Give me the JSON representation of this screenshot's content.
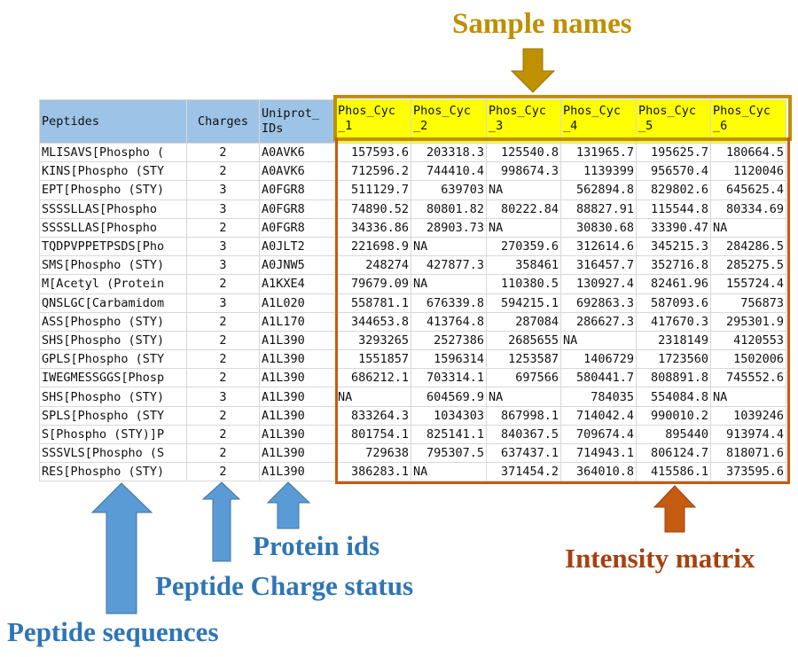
{
  "annotations": {
    "sample_names": "Sample names",
    "intensity_matrix": "Intensity matrix",
    "protein_ids": "Protein ids",
    "charge_status": "Peptide Charge status",
    "peptide_sequences": "Peptide sequences"
  },
  "colors": {
    "sample_label": "#bf8f00",
    "intensity_label": "#a5410e",
    "blue_label": "#2e75b6",
    "blue_arrow": "#5b9bd5",
    "gold_arrow": "#bf9000",
    "orange_arrow": "#c55a11",
    "header_fill": "#9dc3e6",
    "sample_fill": "#ffff00"
  },
  "table": {
    "headers": [
      "Peptides",
      "Charges",
      "Uniprot_ IDs",
      "Phos_Cyc _1",
      "Phos_Cyc _2",
      "Phos_Cyc _3",
      "Phos_Cyc _4",
      "Phos_Cyc _5",
      "Phos_Cyc _6"
    ],
    "rows": [
      [
        "MLISAVS[Phospho (",
        "2",
        "A0AVK6",
        "157593.6",
        "203318.3",
        "125540.8",
        "131965.7",
        "195625.7",
        "180664.5"
      ],
      [
        "KINS[Phospho (STY",
        "2",
        "A0AVK6",
        "712596.2",
        "744410.4",
        "998674.3",
        "1139399",
        "956570.4",
        "1120046"
      ],
      [
        "EPT[Phospho (STY)",
        "3",
        "A0FGR8",
        "511129.7",
        "639703",
        "NA",
        "562894.8",
        "829802.6",
        "645625.4"
      ],
      [
        "SSSSLLAS[Phospho",
        "3",
        "A0FGR8",
        "74890.52",
        "80801.82",
        "80222.84",
        "88827.91",
        "115544.8",
        "80334.69"
      ],
      [
        "SSSSLLAS[Phospho",
        "2",
        "A0FGR8",
        "34336.86",
        "28903.73",
        "NA",
        "30830.68",
        "33390.47",
        "NA"
      ],
      [
        "TQDPVPPETPSDS[Pho",
        "3",
        "A0JLT2",
        "221698.9",
        "NA",
        "270359.6",
        "312614.6",
        "345215.3",
        "284286.5"
      ],
      [
        "SMS[Phospho (STY)",
        "3",
        "A0JNW5",
        "248274",
        "427877.3",
        "358461",
        "316457.7",
        "352716.8",
        "285275.5"
      ],
      [
        "M[Acetyl (Protein",
        "2",
        "A1KXE4",
        "79679.09",
        "NA",
        "110380.5",
        "130927.4",
        "82461.96",
        "155724.4"
      ],
      [
        "QNSLGC[Carbamidom",
        "3",
        "A1L020",
        "558781.1",
        "676339.8",
        "594215.1",
        "692863.3",
        "587093.6",
        "756873"
      ],
      [
        "ASS[Phospho (STY)",
        "2",
        "A1L170",
        "344653.8",
        "413764.8",
        "287084",
        "286627.3",
        "417670.3",
        "295301.9"
      ],
      [
        "SHS[Phospho (STY)",
        "2",
        "A1L390",
        "3293265",
        "2527386",
        "2685655",
        "NA",
        "2318149",
        "4120553"
      ],
      [
        "GPLS[Phospho (STY",
        "2",
        "A1L390",
        "1551857",
        "1596314",
        "1253587",
        "1406729",
        "1723560",
        "1502006"
      ],
      [
        "IWEGMESSGGS[Phosp",
        "2",
        "A1L390",
        "686212.1",
        "703314.1",
        "697566",
        "580441.7",
        "808891.8",
        "745552.6"
      ],
      [
        "SHS[Phospho (STY)",
        "3",
        "A1L390",
        "NA",
        "604569.9",
        "NA",
        "784035",
        "554084.8",
        "NA"
      ],
      [
        "SPLS[Phospho (STY",
        "2",
        "A1L390",
        "833264.3",
        "1034303",
        "867998.1",
        "714042.4",
        "990010.2",
        "1039246"
      ],
      [
        "S[Phospho (STY)]P",
        "2",
        "A1L390",
        "801754.1",
        "825141.1",
        "840367.5",
        "709674.4",
        "895440",
        "913974.4"
      ],
      [
        "SSSVLS[Phospho (S",
        "2",
        "A1L390",
        "729638",
        "795307.5",
        "637437.1",
        "714943.1",
        "806124.7",
        "818071.6"
      ],
      [
        "RES[Phospho (STY)",
        "2",
        "A1L390",
        "386283.1",
        "NA",
        "371454.2",
        "364010.8",
        "415586.1",
        "373595.6"
      ]
    ]
  }
}
